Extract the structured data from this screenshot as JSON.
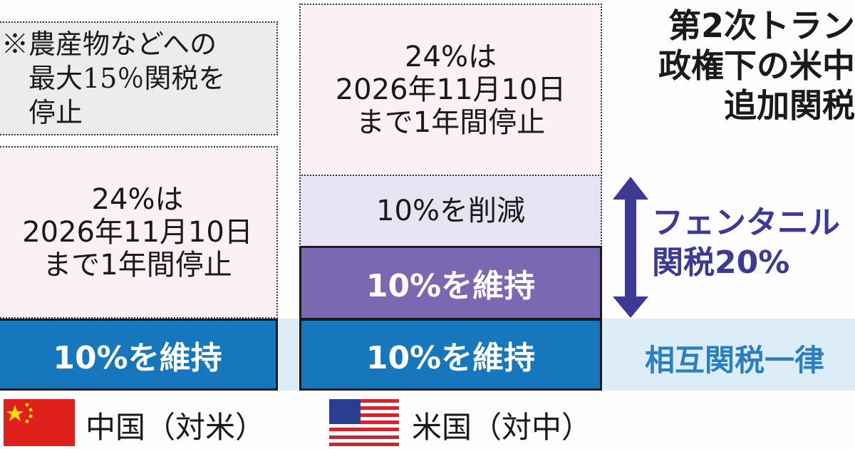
{
  "title": {
    "lines": [
      "第2次トラン",
      "政権下の米中",
      "追加関税"
    ]
  },
  "china": {
    "note": [
      "※農産物などへの",
      "最大15％関税を",
      "停止"
    ],
    "suspended": [
      "24%は",
      "2026年11月10日",
      "まで1年間停止"
    ],
    "kept": "10%を維持",
    "label": "中国（対米）"
  },
  "us": {
    "suspended": [
      "24%は",
      "2026年11月10日",
      "まで1年間停止"
    ],
    "reduced": "10%を削減",
    "fentanyl_kept": "10%を維持",
    "kept": "10%を維持",
    "label": "米国（対中）"
  },
  "fentanyl": {
    "lines": [
      "フェンタニル",
      "関税20%"
    ]
  },
  "reciprocal": "相互関税一律",
  "colors": {
    "blue": "#1777bd",
    "purple": "#7a68b2",
    "lavender": "#e6e4f2",
    "pink": "#fbf0f2",
    "note_gray": "#ececec",
    "band": "#dcedf8",
    "arrow": "#3d3a96"
  }
}
